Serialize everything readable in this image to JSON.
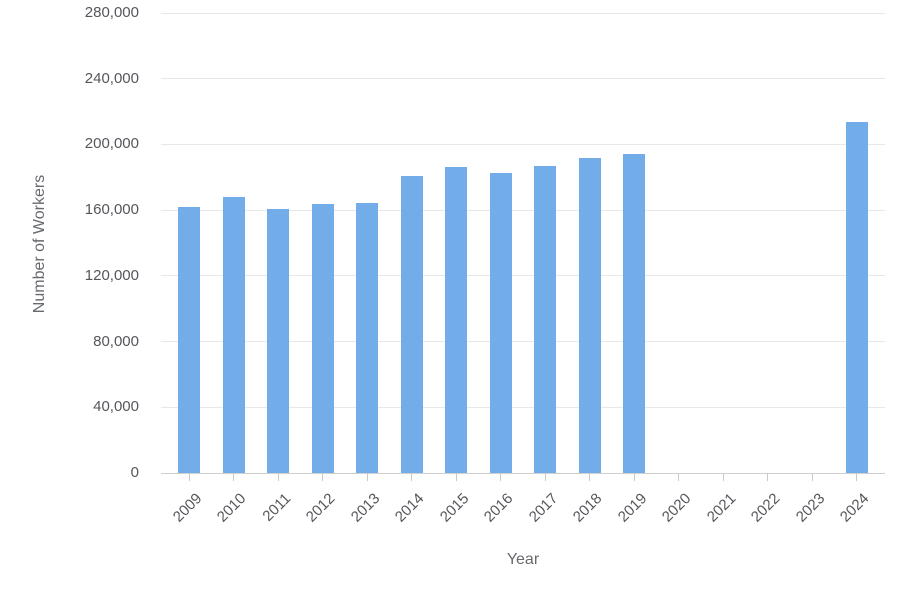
{
  "chart_data": {
    "type": "bar",
    "title": "",
    "xlabel": "Year",
    "ylabel": "Number of Workers",
    "categories": [
      "2009",
      "2010",
      "2011",
      "2012",
      "2013",
      "2014",
      "2015",
      "2016",
      "2017",
      "2018",
      "2019",
      "2020",
      "2021",
      "2022",
      "2023",
      "2024"
    ],
    "values": [
      162000,
      168000,
      161000,
      164000,
      164500,
      180500,
      186000,
      182500,
      187000,
      192000,
      194000,
      0,
      0,
      0,
      0,
      213500
    ],
    "ylim": [
      0,
      280000
    ],
    "ytick_interval": 40000,
    "ytick_labels": [
      "0",
      "40,000",
      "80,000",
      "120,000",
      "160,000",
      "200,000",
      "240,000",
      "280,000"
    ],
    "grid": "horizontal-only",
    "legend_position": "none",
    "bar_color": "#73ade9",
    "gridline_color": "#e8e8e8",
    "axis_line_color": "#cfcfcf",
    "tick_label_color": "#54565b",
    "axis_title_color": "#66696e",
    "background_color": "#ffffff"
  }
}
